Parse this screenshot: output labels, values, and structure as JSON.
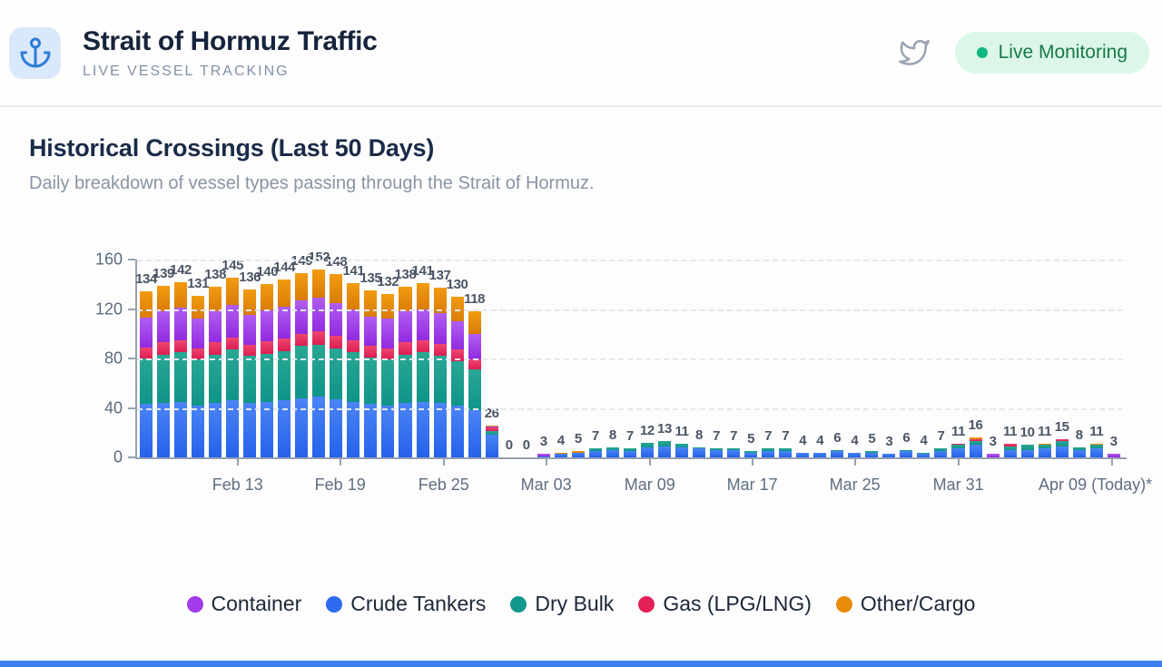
{
  "header": {
    "title": "Strait of Hormuz Traffic",
    "subtitle": "LIVE VESSEL TRACKING",
    "badge": {
      "label": "Live Monitoring",
      "dot_color": "#10b981"
    }
  },
  "section": {
    "title": "Historical Crossings (Last 50 Days)",
    "subtitle": "Daily breakdown of vessel types passing through the Strait of Hormuz."
  },
  "chart_data": {
    "type": "bar",
    "stacked": true,
    "title": "Historical Crossings (Last 50 Days)",
    "xlabel": "",
    "ylabel": "",
    "ylim": [
      0,
      160
    ],
    "yticks": [
      0,
      40,
      80,
      120,
      160
    ],
    "grid": "horizontal-dashed",
    "legend_position": "bottom",
    "stack_order_bottom_to_top": [
      "Crude Tankers",
      "Dry Bulk",
      "Gas (LPG/LNG)",
      "Container",
      "Other/Cargo"
    ],
    "series_colors": {
      "Crude Tankers": [
        "#4b84f5",
        "#2562ea"
      ],
      "Dry Bulk": [
        "#2aa795",
        "#0f9488"
      ],
      "Gas (LPG/LNG)": [
        "#ef4570",
        "#dc1e52"
      ],
      "Container": [
        "#b05df1",
        "#922ae0"
      ],
      "Other/Cargo": [
        "#f29b10",
        "#d97c06"
      ]
    },
    "totals": [
      134,
      139,
      142,
      131,
      138,
      145,
      136,
      140,
      144,
      149,
      152,
      148,
      141,
      135,
      132,
      138,
      141,
      137,
      130,
      118,
      26,
      0,
      0,
      3,
      4,
      5,
      7,
      8,
      7,
      12,
      13,
      11,
      8,
      7,
      7,
      5,
      7,
      7,
      4,
      4,
      6,
      4,
      5,
      3,
      6,
      4,
      7,
      11,
      16,
      3,
      11,
      10,
      11,
      15,
      8,
      11,
      3
    ],
    "segments": [
      [
        43,
        37,
        9,
        24,
        21
      ],
      [
        44,
        39,
        10,
        25,
        21
      ],
      [
        45,
        40,
        10,
        26,
        21
      ],
      [
        42,
        37,
        9,
        24,
        19
      ],
      [
        44,
        39,
        10,
        25,
        20
      ],
      [
        46,
        41,
        10,
        26,
        22
      ],
      [
        44,
        38,
        9,
        24,
        21
      ],
      [
        45,
        39,
        10,
        25,
        21
      ],
      [
        46,
        40,
        10,
        26,
        22
      ],
      [
        48,
        42,
        10,
        27,
        22
      ],
      [
        49,
        42,
        11,
        27,
        23
      ],
      [
        47,
        41,
        10,
        27,
        23
      ],
      [
        45,
        40,
        10,
        25,
        21
      ],
      [
        43,
        38,
        9,
        24,
        21
      ],
      [
        42,
        37,
        9,
        24,
        20
      ],
      [
        44,
        39,
        10,
        25,
        20
      ],
      [
        45,
        40,
        10,
        25,
        21
      ],
      [
        44,
        38,
        10,
        25,
        20
      ],
      [
        42,
        36,
        9,
        23,
        20
      ],
      [
        38,
        33,
        8,
        21,
        18
      ],
      [
        18,
        3,
        3,
        1,
        1
      ],
      [
        0,
        0,
        0,
        0,
        0
      ],
      [
        0,
        0,
        0,
        0,
        0
      ],
      [
        1,
        0,
        0,
        2,
        0
      ],
      [
        3,
        0,
        0,
        0,
        1
      ],
      [
        4,
        0,
        0,
        0,
        1
      ],
      [
        5,
        2,
        0,
        0,
        0
      ],
      [
        6,
        2,
        0,
        0,
        0
      ],
      [
        5,
        2,
        0,
        0,
        0
      ],
      [
        8,
        4,
        0,
        0,
        0
      ],
      [
        9,
        4,
        0,
        0,
        0
      ],
      [
        8,
        3,
        0,
        0,
        0
      ],
      [
        7,
        1,
        0,
        0,
        0
      ],
      [
        6,
        1,
        0,
        0,
        0
      ],
      [
        6,
        1,
        0,
        0,
        0
      ],
      [
        4,
        1,
        0,
        0,
        0
      ],
      [
        5,
        2,
        0,
        0,
        0
      ],
      [
        5,
        2,
        0,
        0,
        0
      ],
      [
        4,
        0,
        0,
        0,
        0
      ],
      [
        4,
        0,
        0,
        0,
        0
      ],
      [
        5,
        1,
        0,
        0,
        0
      ],
      [
        4,
        0,
        0,
        0,
        0
      ],
      [
        4,
        1,
        0,
        0,
        0
      ],
      [
        3,
        0,
        0,
        0,
        0
      ],
      [
        5,
        1,
        0,
        0,
        0
      ],
      [
        3,
        1,
        0,
        0,
        0
      ],
      [
        5,
        2,
        0,
        0,
        0
      ],
      [
        7,
        3,
        1,
        0,
        0
      ],
      [
        10,
        3,
        2,
        0,
        1
      ],
      [
        0,
        0,
        0,
        3,
        0
      ],
      [
        6,
        3,
        2,
        0,
        0
      ],
      [
        6,
        4,
        0,
        0,
        0
      ],
      [
        7,
        3,
        0,
        0,
        1
      ],
      [
        9,
        4,
        2,
        0,
        0
      ],
      [
        6,
        2,
        0,
        0,
        0
      ],
      [
        7,
        3,
        0,
        0,
        1
      ],
      [
        0,
        0,
        0,
        3,
        0
      ]
    ],
    "xticks": [
      {
        "label": "Feb 13",
        "x_pct": 10.2,
        "tick_pct": 10.2
      },
      {
        "label": "Feb 19",
        "x_pct": 20.6,
        "tick_pct": 20.6
      },
      {
        "label": "Feb 25",
        "x_pct": 31.1,
        "tick_pct": 31.1
      },
      {
        "label": "Mar 03",
        "x_pct": 41.5,
        "tick_pct": 41.5
      },
      {
        "label": "Mar 09",
        "x_pct": 52.0,
        "tick_pct": 52.0
      },
      {
        "label": "Mar 17",
        "x_pct": 62.4,
        "tick_pct": 62.4
      },
      {
        "label": "Mar 25",
        "x_pct": 72.8,
        "tick_pct": 72.8
      },
      {
        "label": "Mar 31",
        "x_pct": 83.3,
        "tick_pct": 83.3
      },
      {
        "label": "Apr 09 (Today)*",
        "x_pct": 97.2,
        "tick_pct": 98.9
      }
    ]
  },
  "legend": {
    "items": [
      {
        "label": "Container",
        "color": "#a13ae8"
      },
      {
        "label": "Crude Tankers",
        "color": "#2e6bf2"
      },
      {
        "label": "Dry Bulk",
        "color": "#12998c"
      },
      {
        "label": "Gas (LPG/LNG)",
        "color": "#e22057"
      },
      {
        "label": "Other/Cargo",
        "color": "#e78b0b"
      }
    ]
  }
}
